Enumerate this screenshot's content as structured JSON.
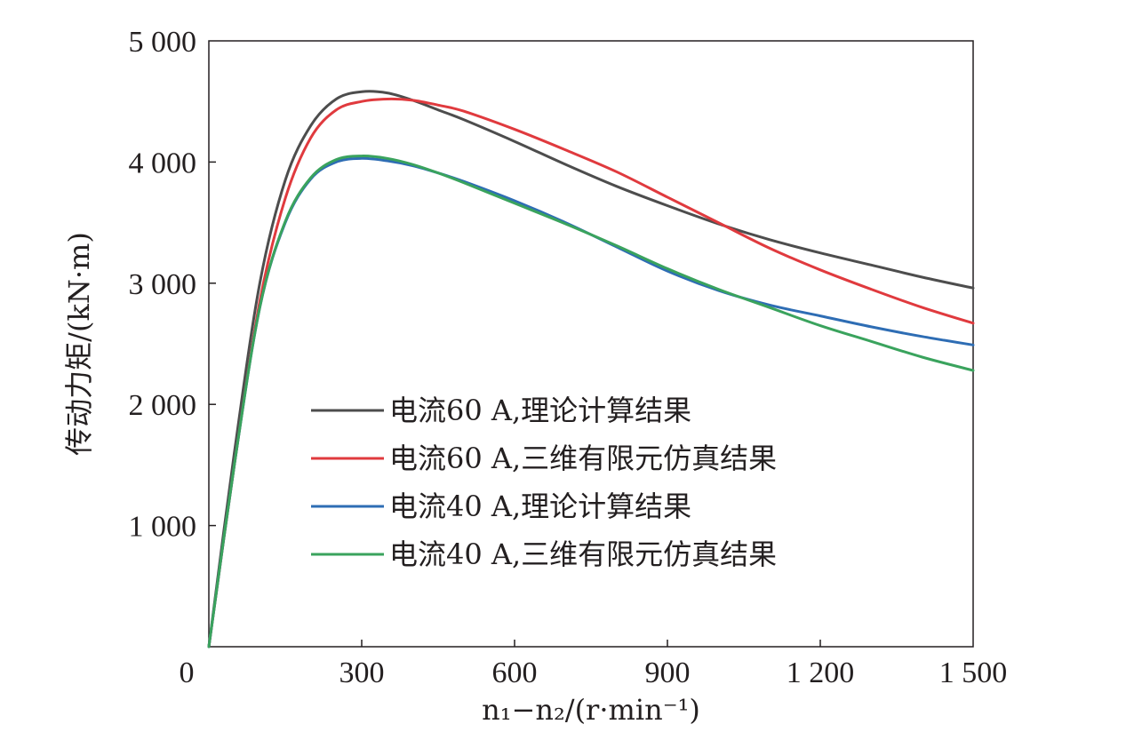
{
  "chart_data": {
    "type": "line",
    "xlabel": "n₁−n₂/(r·min⁻¹)",
    "ylabel": "传动力矩/(kN·m)",
    "xlim": [
      0,
      1500
    ],
    "ylim": [
      0,
      5000
    ],
    "x_ticks": [
      {
        "value": 0,
        "label": "0"
      },
      {
        "value": 300,
        "label": "300"
      },
      {
        "value": 600,
        "label": "600"
      },
      {
        "value": 900,
        "label": "900"
      },
      {
        "value": 1200,
        "label": "1 200"
      },
      {
        "value": 1500,
        "label": "1 500"
      }
    ],
    "y_ticks": [
      {
        "value": 1000,
        "label": "1 000"
      },
      {
        "value": 2000,
        "label": "2 000"
      },
      {
        "value": 3000,
        "label": "3 000"
      },
      {
        "value": 4000,
        "label": "4 000"
      },
      {
        "value": 5000,
        "label": "5 000"
      }
    ],
    "grid": false,
    "legend_position": "center-left",
    "x": [
      0,
      50,
      100,
      150,
      200,
      250,
      300,
      350,
      400,
      450,
      500,
      600,
      700,
      800,
      900,
      1000,
      1100,
      1200,
      1300,
      1400,
      1500
    ],
    "series": [
      {
        "name": "电流60 A,理论计算结果",
        "color": "#4d4d4d",
        "values": [
          0,
          1600,
          3000,
          3850,
          4300,
          4520,
          4580,
          4570,
          4510,
          4430,
          4350,
          4170,
          3980,
          3800,
          3640,
          3490,
          3360,
          3250,
          3150,
          3050,
          2960
        ]
      },
      {
        "name": "电流60 A,三维有限元仿真结果",
        "color": "#e03a3e",
        "values": [
          0,
          1500,
          2850,
          3700,
          4200,
          4430,
          4500,
          4520,
          4510,
          4470,
          4420,
          4270,
          4100,
          3920,
          3710,
          3500,
          3290,
          3110,
          2950,
          2800,
          2670
        ]
      },
      {
        "name": "电流40 A,理论计算结果",
        "color": "#2e6db4",
        "values": [
          0,
          1500,
          2800,
          3500,
          3860,
          4000,
          4030,
          4010,
          3970,
          3910,
          3840,
          3680,
          3500,
          3300,
          3100,
          2940,
          2820,
          2730,
          2640,
          2560,
          2490
        ]
      },
      {
        "name": "电流40 A,三维有限元仿真结果",
        "color": "#3aa35d",
        "values": [
          0,
          1500,
          2800,
          3510,
          3870,
          4020,
          4050,
          4030,
          3980,
          3910,
          3830,
          3660,
          3490,
          3310,
          3120,
          2950,
          2800,
          2650,
          2520,
          2390,
          2280
        ]
      }
    ]
  }
}
